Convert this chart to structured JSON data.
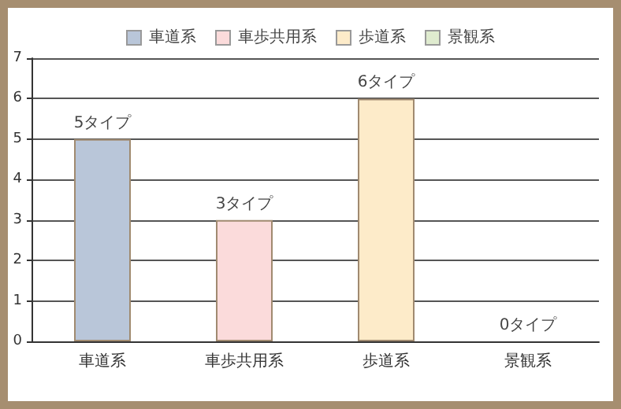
{
  "chart_data": {
    "type": "bar",
    "categories": [
      "車道系",
      "車歩共用系",
      "歩道系",
      "景観系"
    ],
    "stacked": true,
    "series": [
      {
        "name": "車道系",
        "color": "#b9c6d9",
        "values": [
          5,
          null,
          null,
          null
        ],
        "value_labels": [
          "5タイプ",
          null,
          null,
          null
        ]
      },
      {
        "name": "車歩共用系",
        "color": "#fbdbdb",
        "values": [
          null,
          3,
          null,
          null
        ],
        "value_labels": [
          null,
          "3タイプ",
          null,
          null
        ]
      },
      {
        "name": "歩道系",
        "color": "#fdebc9",
        "values": [
          null,
          null,
          6,
          null
        ],
        "value_labels": [
          null,
          null,
          "6タイプ",
          null
        ]
      },
      {
        "name": "景観系",
        "color": "#dfebcf",
        "values": [
          null,
          null,
          null,
          0
        ],
        "value_labels": [
          null,
          null,
          null,
          "0タイプ"
        ]
      }
    ],
    "ylim": [
      0,
      7
    ],
    "yticks": [
      0,
      1,
      2,
      3,
      4,
      5,
      6,
      7
    ],
    "grid": "y",
    "legend": "top"
  }
}
